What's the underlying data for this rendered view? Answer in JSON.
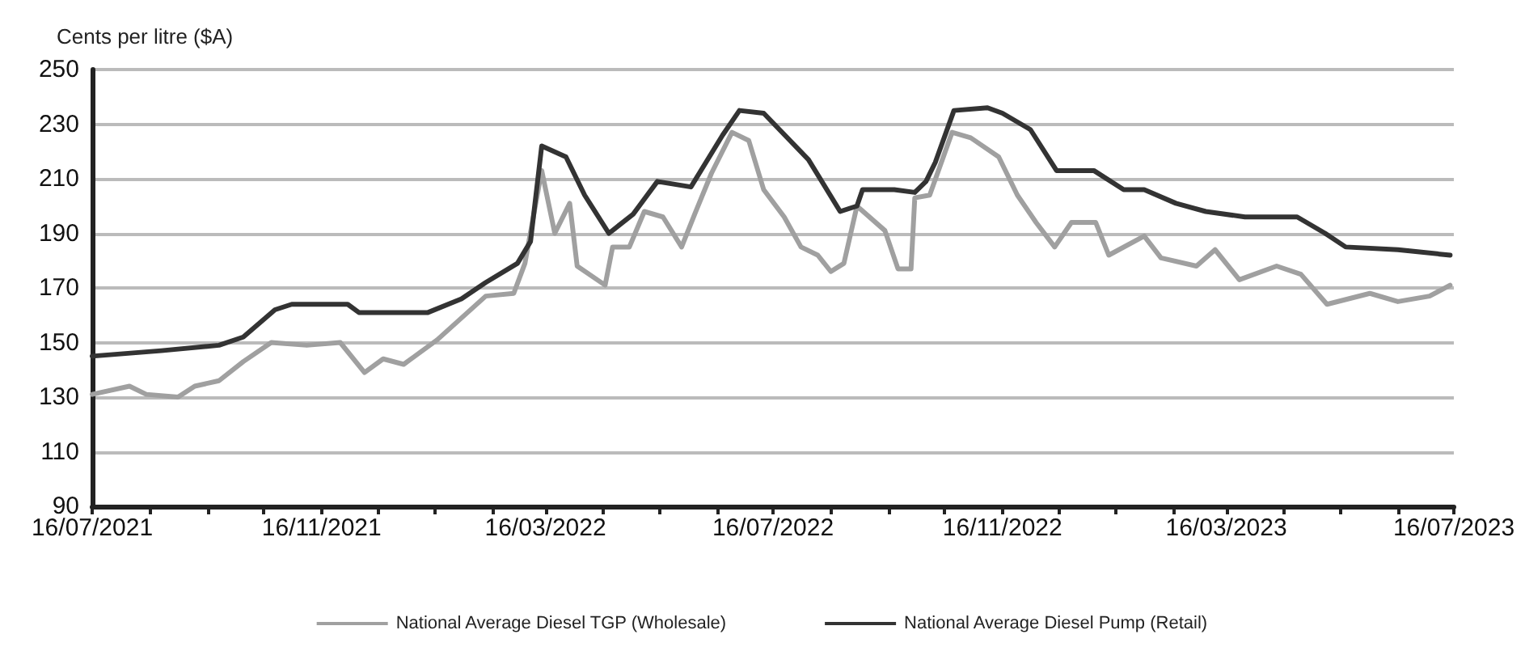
{
  "chart_data": {
    "type": "line",
    "ylabel": "Cents per litre ($A)",
    "ylim": [
      90,
      250
    ],
    "yticks": [
      90,
      110,
      130,
      150,
      170,
      190,
      210,
      230,
      250
    ],
    "xlim": [
      "2021-07-16",
      "2023-07-16"
    ],
    "xticks": [
      {
        "value": "2021-07-16",
        "label": "16/07/2021"
      },
      {
        "value": "2021-08-16",
        "label": null
      },
      {
        "value": "2021-09-16",
        "label": null
      },
      {
        "value": "2021-10-16",
        "label": null
      },
      {
        "value": "2021-11-16",
        "label": "16/11/2021"
      },
      {
        "value": "2021-12-16",
        "label": null
      },
      {
        "value": "2022-01-16",
        "label": null
      },
      {
        "value": "2022-02-16",
        "label": null
      },
      {
        "value": "2022-03-16",
        "label": "16/03/2022"
      },
      {
        "value": "2022-04-16",
        "label": null
      },
      {
        "value": "2022-05-16",
        "label": null
      },
      {
        "value": "2022-06-16",
        "label": null
      },
      {
        "value": "2022-07-16",
        "label": "16/07/2022"
      },
      {
        "value": "2022-08-16",
        "label": null
      },
      {
        "value": "2022-09-16",
        "label": null
      },
      {
        "value": "2022-10-16",
        "label": null
      },
      {
        "value": "2022-11-16",
        "label": "16/11/2022"
      },
      {
        "value": "2022-12-16",
        "label": null
      },
      {
        "value": "2023-01-16",
        "label": null
      },
      {
        "value": "2023-02-16",
        "label": null
      },
      {
        "value": "2023-03-16",
        "label": "16/03/2023"
      },
      {
        "value": "2023-04-16",
        "label": null
      },
      {
        "value": "2023-05-16",
        "label": null
      },
      {
        "value": "2023-06-16",
        "label": null
      },
      {
        "value": "2023-07-16",
        "label": "16/07/2023"
      }
    ],
    "grid": "y",
    "legend": "bottom",
    "marker": "none",
    "line_style": "solid",
    "series": [
      {
        "name": "National Average Diesel TGP (Wholesale)",
        "color": "#a0a0a0",
        "x": [
          "2021-07-16",
          "2021-08-05",
          "2021-08-14",
          "2021-08-31",
          "2021-09-09",
          "2021-09-22",
          "2021-10-05",
          "2021-10-20",
          "2021-11-08",
          "2021-11-26",
          "2021-12-09",
          "2021-12-19",
          "2021-12-30",
          "2022-01-17",
          "2022-01-30",
          "2022-02-12",
          "2022-02-27",
          "2022-03-05",
          "2022-03-14",
          "2022-03-21",
          "2022-03-29",
          "2022-04-02",
          "2022-04-17",
          "2022-04-21",
          "2022-04-30",
          "2022-05-08",
          "2022-05-18",
          "2022-05-28",
          "2022-06-04",
          "2022-06-13",
          "2022-06-24",
          "2022-07-03",
          "2022-07-11",
          "2022-07-22",
          "2022-07-31",
          "2022-08-09",
          "2022-08-16",
          "2022-08-23",
          "2022-08-30",
          "2022-09-14",
          "2022-09-21",
          "2022-09-28",
          "2022-09-30",
          "2022-10-08",
          "2022-10-20",
          "2022-10-30",
          "2022-11-14",
          "2022-11-24",
          "2022-12-04",
          "2022-12-14",
          "2022-12-23",
          "2023-01-05",
          "2023-01-12",
          "2023-01-31",
          "2023-02-09",
          "2023-02-28",
          "2023-03-10",
          "2023-03-23",
          "2023-04-12",
          "2023-04-25",
          "2023-05-09",
          "2023-06-01",
          "2023-06-16",
          "2023-07-03",
          "2023-07-14"
        ],
        "values": [
          131,
          134,
          131,
          130,
          134,
          136,
          143,
          150,
          149,
          150,
          139,
          144,
          142,
          151,
          159,
          167,
          168,
          179,
          213,
          190,
          201,
          178,
          171,
          185,
          185,
          198,
          196,
          185,
          197,
          212,
          227,
          224,
          206,
          196,
          185,
          182,
          176,
          179,
          200,
          191,
          177,
          177,
          203,
          204,
          227,
          225,
          218,
          204,
          194,
          185,
          194,
          194,
          182,
          189,
          181,
          178,
          184,
          173,
          178,
          175,
          164,
          168,
          165,
          167,
          171
        ]
      },
      {
        "name": "National Average Diesel Pump (Retail)",
        "color": "#333333",
        "x": [
          "2021-07-16",
          "2021-08-22",
          "2021-09-22",
          "2021-10-05",
          "2021-10-22",
          "2021-10-31",
          "2021-11-30",
          "2021-12-06",
          "2022-01-12",
          "2022-01-30",
          "2022-02-12",
          "2022-03-01",
          "2022-03-08",
          "2022-03-14",
          "2022-03-27",
          "2022-04-06",
          "2022-04-19",
          "2022-05-02",
          "2022-05-15",
          "2022-06-02",
          "2022-06-19",
          "2022-06-28",
          "2022-07-11",
          "2022-08-04",
          "2022-08-21",
          "2022-08-30",
          "2022-09-02",
          "2022-09-19",
          "2022-09-30",
          "2022-10-06",
          "2022-10-11",
          "2022-10-21",
          "2022-11-08",
          "2022-11-16",
          "2022-12-01",
          "2022-12-15",
          "2023-01-04",
          "2023-01-20",
          "2023-01-31",
          "2023-02-17",
          "2023-03-05",
          "2023-03-26",
          "2023-04-23",
          "2023-05-08",
          "2023-05-19",
          "2023-06-16",
          "2023-07-14"
        ],
        "values": [
          145,
          147,
          149,
          152,
          162,
          164,
          164,
          161,
          161,
          166,
          172,
          179,
          187,
          222,
          218,
          204,
          190,
          197,
          209,
          207,
          226,
          235,
          234,
          217,
          198,
          200,
          206,
          206,
          205,
          209,
          216,
          235,
          236,
          234,
          228,
          213,
          213,
          206,
          206,
          201,
          198,
          196,
          196,
          190,
          185,
          184,
          182
        ]
      }
    ]
  }
}
